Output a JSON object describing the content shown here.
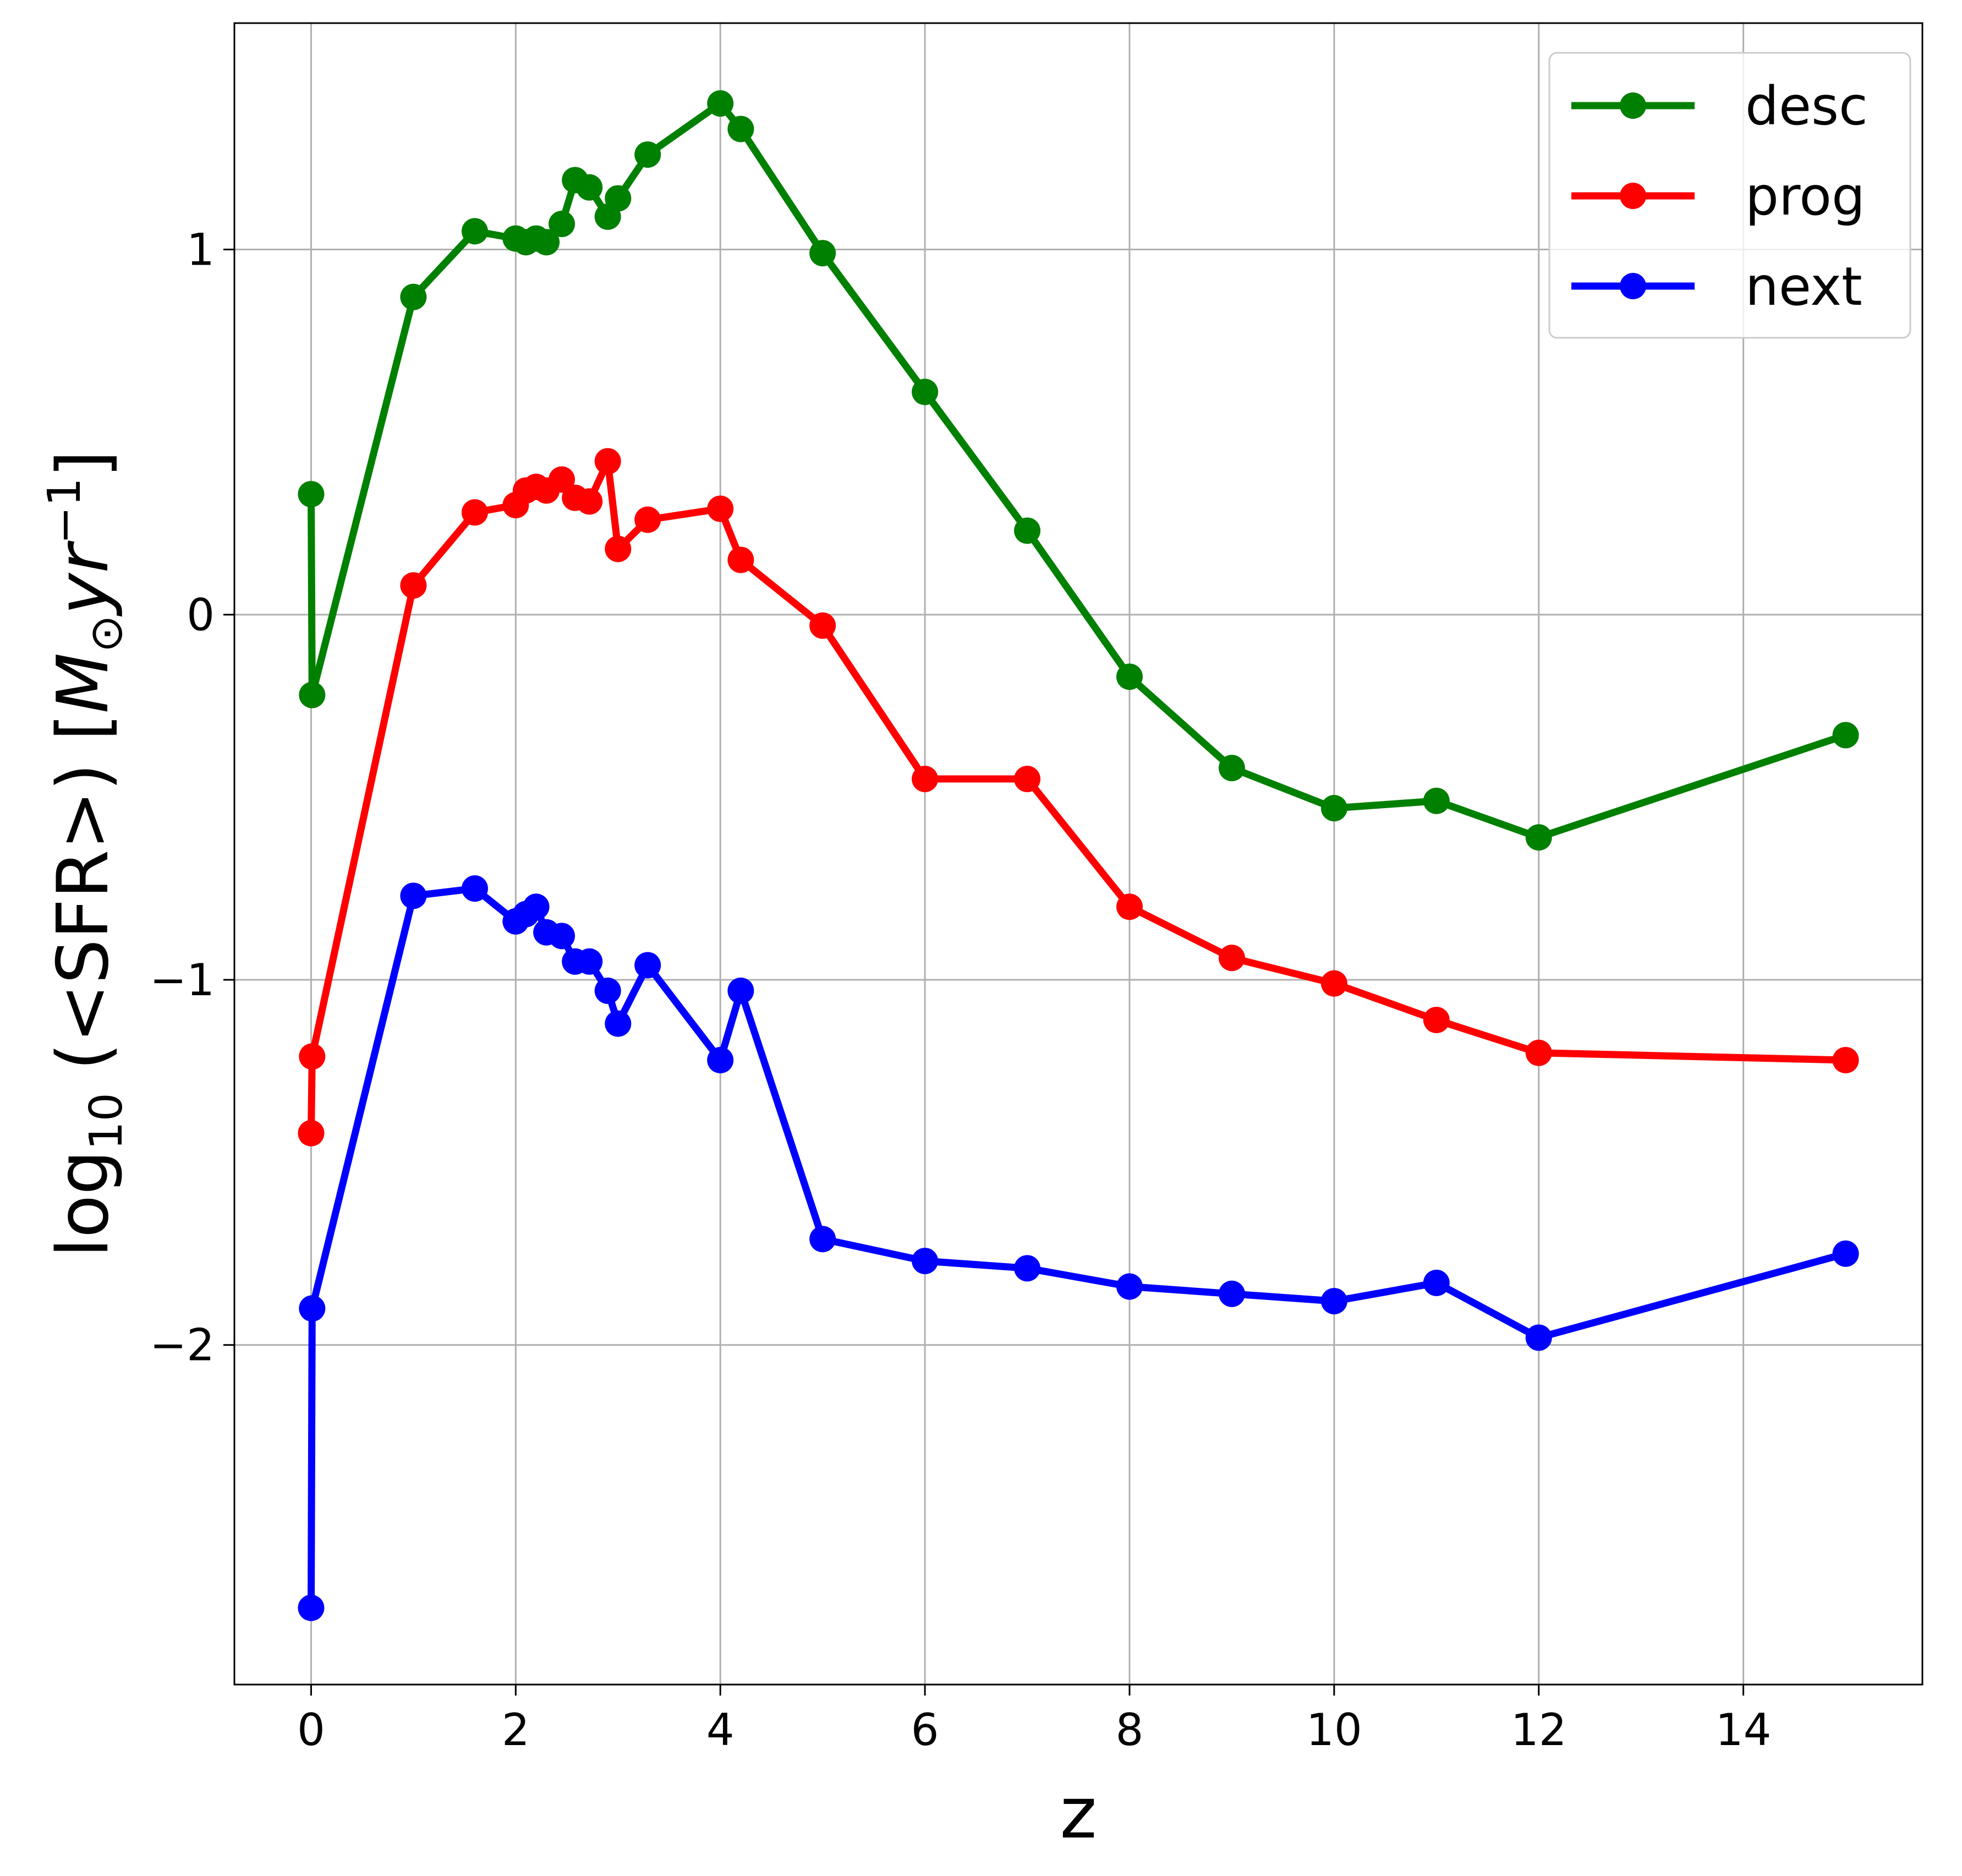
{
  "chart_data": {
    "type": "line",
    "title": "",
    "xlabel": "z",
    "ylabel_parts": {
      "prefix": "log",
      "subscript": "10",
      "middle": " (<SFR>) [",
      "unit_M": "M",
      "unit_sun": "⊙",
      "unit_yr": "yr",
      "exp": "−1",
      "suffix": "]"
    },
    "xlim": [
      -0.75,
      15.75
    ],
    "ylim": [
      -2.93,
      1.62
    ],
    "xticks": [
      0,
      2,
      4,
      6,
      8,
      10,
      12,
      14
    ],
    "xtick_labels": [
      "0",
      "2",
      "4",
      "6",
      "8",
      "10",
      "12",
      "14"
    ],
    "yticks": [
      -2,
      -1,
      0,
      1
    ],
    "ytick_labels": [
      "−2",
      "−1",
      "0",
      "1"
    ],
    "grid": true,
    "legend_position": "top-right",
    "series": [
      {
        "name": "desc",
        "color": "#008000",
        "x": [
          0,
          0.01,
          1,
          1.6,
          2,
          2.1,
          2.2,
          2.3,
          2.45,
          2.58,
          2.72,
          2.9,
          3.0,
          3.29,
          4.0,
          4.2,
          5.0,
          6.0,
          7.0,
          8.0,
          9.0,
          10.0,
          11.0,
          12.0,
          15.0
        ],
        "y": [
          0.33,
          -0.22,
          0.87,
          1.05,
          1.03,
          1.02,
          1.03,
          1.02,
          1.07,
          1.19,
          1.17,
          1.09,
          1.14,
          1.26,
          1.4,
          1.33,
          0.99,
          0.61,
          0.23,
          -0.17,
          -0.42,
          -0.53,
          -0.51,
          -0.61,
          -0.33
        ]
      },
      {
        "name": "prog",
        "color": "#ff0000",
        "x": [
          0,
          0.01,
          1,
          1.6,
          2,
          2.1,
          2.2,
          2.3,
          2.45,
          2.58,
          2.72,
          2.9,
          3.0,
          3.29,
          4.0,
          4.2,
          5.0,
          6.0,
          7.0,
          8.0,
          9.0,
          10.0,
          11.0,
          12.0,
          15.0
        ],
        "y": [
          -1.42,
          -1.21,
          0.08,
          0.28,
          0.3,
          0.34,
          0.35,
          0.34,
          0.37,
          0.32,
          0.31,
          0.42,
          0.18,
          0.26,
          0.29,
          0.15,
          -0.03,
          -0.45,
          -0.45,
          -0.8,
          -0.94,
          -1.01,
          -1.11,
          -1.2,
          -1.22
        ]
      },
      {
        "name": "next",
        "color": "#0000ff",
        "x": [
          0,
          0.01,
          1,
          1.6,
          2,
          2.1,
          2.2,
          2.3,
          2.45,
          2.58,
          2.72,
          2.9,
          3.0,
          3.29,
          4.0,
          4.2,
          5.0,
          6.0,
          7.0,
          8.0,
          9.0,
          10.0,
          11.0,
          12.0,
          15.0
        ],
        "y": [
          -2.72,
          -1.9,
          -0.77,
          -0.75,
          -0.84,
          -0.82,
          -0.8,
          -0.87,
          -0.88,
          -0.95,
          -0.95,
          -1.03,
          -1.12,
          -0.96,
          -1.22,
          -1.03,
          -1.71,
          -1.77,
          -1.79,
          -1.84,
          -1.86,
          -1.88,
          -1.83,
          -1.98,
          -1.75
        ]
      }
    ]
  }
}
